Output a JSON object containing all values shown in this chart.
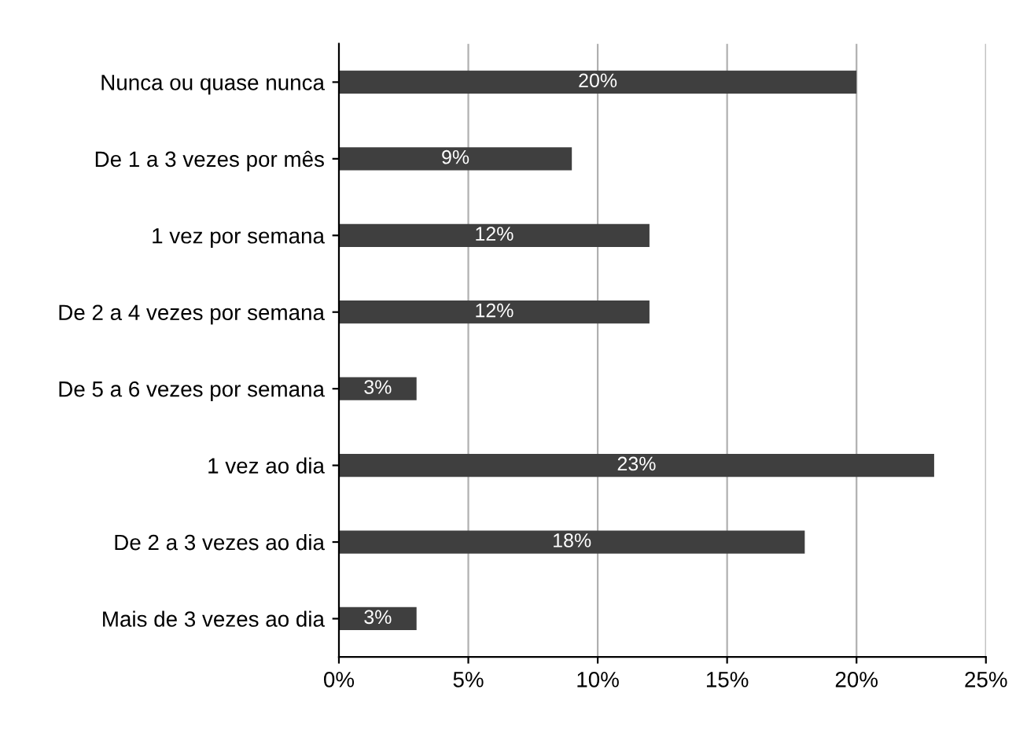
{
  "chart_data": {
    "type": "bar",
    "orientation": "horizontal",
    "categories": [
      "Nunca ou quase nunca",
      "De 1 a 3 vezes por mês",
      "1 vez por semana",
      "De 2 a 4 vezes por semana",
      "De 5 a 6 vezes por semana",
      "1 vez ao dia",
      "De 2 a 3 vezes ao dia",
      "Mais de 3 vezes ao dia"
    ],
    "values": [
      20,
      9,
      12,
      12,
      3,
      23,
      18,
      3
    ],
    "value_labels": [
      "20%",
      "9%",
      "12%",
      "12%",
      "3%",
      "23%",
      "18%",
      "3%"
    ],
    "color": "#3f3f3f",
    "xlim": [
      0,
      25
    ],
    "xticks": [
      {
        "value": 0,
        "label": "0%"
      },
      {
        "value": 5,
        "label": "5%"
      },
      {
        "value": 10,
        "label": "10%"
      },
      {
        "value": 15,
        "label": "15%"
      },
      {
        "value": 20,
        "label": "20%"
      },
      {
        "value": 25,
        "label": "25%"
      }
    ],
    "grid": "x"
  }
}
